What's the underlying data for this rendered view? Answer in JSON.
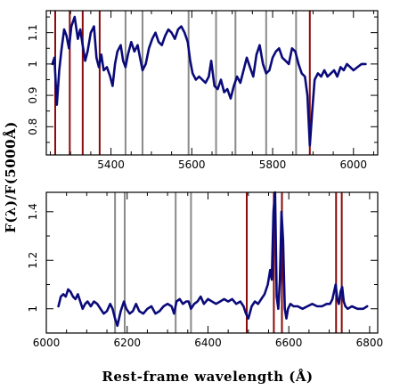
{
  "xlabel": "Rest-frame wavelength (Å)",
  "ylabel": "F(λ)/F(5000Å)",
  "colors": {
    "series": "#0a0a7a",
    "gray_lines": "#8a8a8a",
    "red_lines": "#8b0a0a"
  },
  "chart_data": [
    {
      "type": "line",
      "panel": "top",
      "xlim": [
        5240,
        6060
      ],
      "ylim": [
        0.71,
        1.17
      ],
      "xticks": [
        5400,
        5600,
        5800,
        6000
      ],
      "yticks": [
        0.8,
        0.9,
        1.0,
        1.1
      ],
      "xtick_labels": [
        "5400",
        "5600",
        "5800",
        "6000"
      ],
      "ytick_labels": [
        "0.8",
        "0.9",
        "1",
        "1.1"
      ],
      "red_lines": [
        5262,
        5298,
        5330,
        5372,
        5892
      ],
      "gray_lines": [
        5436,
        5478,
        5592,
        5660,
        5708,
        5784,
        5858
      ],
      "series": [
        {
          "x": [
            5255,
            5260,
            5266,
            5272,
            5278,
            5284,
            5290,
            5296,
            5302,
            5310,
            5318,
            5324,
            5330,
            5336,
            5342,
            5350,
            5358,
            5364,
            5370,
            5376,
            5382,
            5390,
            5398,
            5404,
            5410,
            5416,
            5424,
            5430,
            5436,
            5442,
            5450,
            5458,
            5466,
            5472,
            5478,
            5486,
            5494,
            5502,
            5510,
            5518,
            5526,
            5534,
            5542,
            5550,
            5558,
            5566,
            5574,
            5582,
            5590,
            5596,
            5602,
            5610,
            5618,
            5626,
            5634,
            5642,
            5648,
            5656,
            5664,
            5672,
            5680,
            5688,
            5696,
            5704,
            5712,
            5720,
            5728,
            5736,
            5744,
            5752,
            5760,
            5768,
            5776,
            5784,
            5792,
            5800,
            5808,
            5816,
            5824,
            5832,
            5840,
            5848,
            5856,
            5864,
            5872,
            5880,
            5886,
            5892,
            5898,
            5904,
            5912,
            5920,
            5928,
            5936,
            5944,
            5952,
            5960,
            5968,
            5976,
            5984,
            5992,
            6000,
            6010,
            6020,
            6030
          ],
          "y": [
            1.0,
            1.02,
            0.87,
            0.98,
            1.05,
            1.11,
            1.09,
            1.05,
            1.12,
            1.15,
            1.08,
            1.11,
            1.06,
            1.01,
            1.04,
            1.1,
            1.12,
            1.02,
            0.99,
            1.03,
            0.98,
            0.99,
            0.96,
            0.93,
            1.0,
            1.04,
            1.06,
            1.01,
            0.99,
            1.03,
            1.07,
            1.04,
            1.06,
            1.02,
            0.98,
            1.0,
            1.05,
            1.08,
            1.1,
            1.07,
            1.06,
            1.09,
            1.11,
            1.1,
            1.08,
            1.11,
            1.12,
            1.1,
            1.07,
            1.01,
            0.97,
            0.95,
            0.96,
            0.95,
            0.94,
            0.96,
            1.01,
            0.93,
            0.92,
            0.95,
            0.91,
            0.92,
            0.89,
            0.93,
            0.96,
            0.94,
            0.98,
            1.02,
            0.99,
            0.96,
            1.03,
            1.06,
            1.0,
            0.97,
            0.98,
            1.02,
            1.04,
            1.05,
            1.02,
            1.01,
            1.0,
            1.05,
            1.04,
            1.0,
            0.97,
            0.96,
            0.9,
            0.74,
            0.85,
            0.95,
            0.97,
            0.96,
            0.98,
            0.96,
            0.97,
            0.98,
            0.96,
            0.99,
            0.98,
            1.0,
            0.99,
            0.98,
            0.99,
            1.0,
            1.0
          ]
        }
      ]
    },
    {
      "type": "line",
      "panel": "bottom",
      "xlim": [
        6000,
        6820
      ],
      "ylim": [
        0.9,
        1.48
      ],
      "xticks": [
        6000,
        6200,
        6400,
        6600,
        6800
      ],
      "yticks": [
        1.0,
        1.2,
        1.4
      ],
      "xtick_labels": [
        "6000",
        "6200",
        "6400",
        "6600",
        "6800"
      ],
      "ytick_labels": [
        "1",
        "1.2",
        "1.4"
      ],
      "red_lines": [
        6496,
        6563,
        6583,
        6717,
        6731
      ],
      "gray_lines": [
        6170,
        6194,
        6320,
        6358
      ],
      "series": [
        {
          "x": [
            6030,
            6036,
            6042,
            6048,
            6054,
            6060,
            6066,
            6072,
            6078,
            6084,
            6090,
            6096,
            6102,
            6110,
            6118,
            6126,
            6134,
            6142,
            6150,
            6158,
            6164,
            6170,
            6176,
            6184,
            6192,
            6198,
            6206,
            6214,
            6222,
            6230,
            6240,
            6250,
            6260,
            6270,
            6280,
            6290,
            6300,
            6310,
            6316,
            6322,
            6330,
            6338,
            6346,
            6352,
            6358,
            6366,
            6374,
            6382,
            6390,
            6400,
            6410,
            6420,
            6430,
            6440,
            6450,
            6460,
            6470,
            6480,
            6488,
            6494,
            6500,
            6508,
            6516,
            6524,
            6532,
            6540,
            6548,
            6554,
            6558,
            6562,
            6566,
            6570,
            6574,
            6578,
            6582,
            6586,
            6590,
            6594,
            6598,
            6604,
            6612,
            6622,
            6634,
            6646,
            6658,
            6670,
            6682,
            6694,
            6702,
            6708,
            6712,
            6716,
            6720,
            6724,
            6728,
            6732,
            6736,
            6740,
            6746,
            6756,
            6770,
            6784,
            6794
          ],
          "y": [
            1.01,
            1.05,
            1.06,
            1.05,
            1.08,
            1.07,
            1.05,
            1.04,
            1.06,
            1.03,
            1.0,
            1.02,
            1.03,
            1.01,
            1.03,
            1.02,
            1.0,
            0.98,
            0.99,
            1.02,
            1.0,
            0.96,
            0.93,
            0.99,
            1.03,
            1.0,
            0.98,
            0.99,
            1.02,
            0.99,
            0.98,
            1.0,
            1.01,
            0.98,
            0.99,
            1.01,
            1.02,
            1.01,
            0.98,
            1.03,
            1.04,
            1.02,
            1.03,
            1.03,
            1.0,
            1.02,
            1.03,
            1.05,
            1.02,
            1.04,
            1.03,
            1.02,
            1.03,
            1.04,
            1.03,
            1.04,
            1.02,
            1.03,
            1.01,
            0.98,
            0.96,
            1.01,
            1.03,
            1.02,
            1.04,
            1.06,
            1.1,
            1.16,
            1.12,
            1.4,
            1.48,
            1.05,
            1.0,
            1.12,
            1.4,
            1.28,
            1.0,
            0.96,
            1.0,
            1.02,
            1.01,
            1.01,
            1.0,
            1.01,
            1.02,
            1.01,
            1.01,
            1.02,
            1.02,
            1.04,
            1.07,
            1.1,
            1.04,
            1.02,
            1.07,
            1.09,
            1.03,
            1.01,
            1.0,
            1.01,
            1.0,
            1.0,
            1.01
          ]
        }
      ]
    }
  ]
}
